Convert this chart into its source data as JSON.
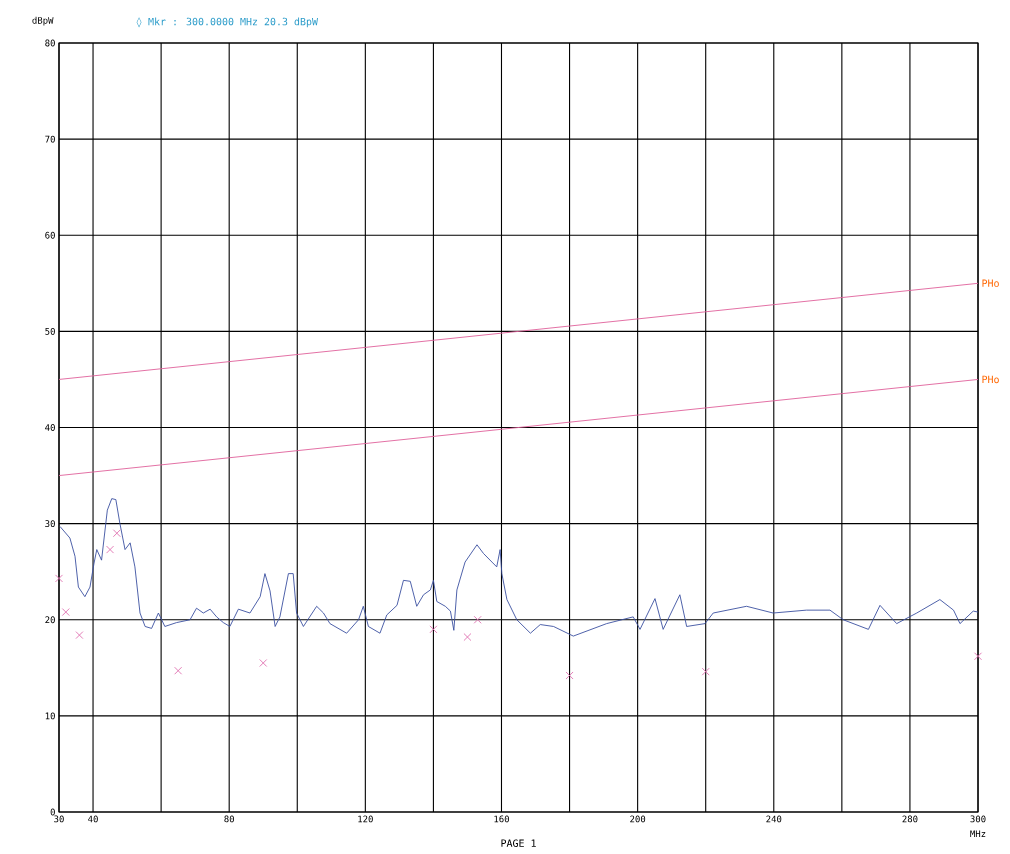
{
  "chart_data": {
    "type": "line",
    "ylabel": "dBpW",
    "xlabel": "MHz",
    "annotations": [
      "◊ Mkr : 300.0000 MHz 20.3 dBpW",
      "PAGE 1"
    ],
    "xlim": [
      30,
      300
    ],
    "ylim": [
      0,
      80
    ],
    "xticks": [
      30,
      40,
      {
        "value": 60,
        "label": null
      },
      80,
      {
        "value": 100,
        "label": null
      },
      120,
      {
        "value": 140,
        "label": null
      },
      160,
      {
        "value": 180,
        "label": null
      },
      200,
      {
        "value": 220,
        "label": null
      },
      240,
      {
        "value": 260,
        "label": null
      },
      280,
      300
    ],
    "yticks": [
      0,
      10,
      20,
      30,
      40,
      50,
      60,
      70,
      80
    ],
    "grid": true,
    "legend": false,
    "line_style": "solid",
    "series": [
      {
        "name": "PHo",
        "color": "#e0609a",
        "x": [
          30,
          300
        ],
        "values": [
          45,
          55
        ],
        "marker": "none"
      },
      {
        "name": "PHo",
        "color": "#e0609a",
        "x": [
          30,
          300
        ],
        "values": [
          35,
          45
        ],
        "marker": "none"
      },
      {
        "color": "#3a4fa0",
        "marker": "none",
        "x": [
          30.3,
          33.2,
          34.7,
          35.7,
          37.6,
          39.1,
          40.3,
          41.1,
          42.5,
          44.2,
          45.5,
          46.7,
          47.9,
          49.4,
          50.9,
          52.3,
          53.8,
          55.3,
          57.2,
          59.2,
          61.1,
          64.5,
          68.5,
          70.4,
          72.4,
          74.4,
          76.3,
          78.3,
          80.2,
          82.7,
          86.1,
          89.1,
          90.5,
          92.0,
          93.5,
          94.9,
          97.4,
          98.8,
          99.8,
          101.8,
          105.7,
          107.7,
          109.6,
          114.5,
          118.0,
          119.4,
          120.9,
          124.3,
          126.3,
          129.3,
          131.2,
          133.2,
          135.1,
          137.1,
          139.1,
          140.0,
          141.0,
          143.5,
          145.0,
          146.0,
          146.9,
          149.3,
          152.8,
          154.7,
          157.2,
          158.6,
          159.6,
          160.1,
          161.6,
          164.5,
          168.5,
          171.4,
          175.3,
          181.1,
          190.9,
          198.7,
          200.7,
          205.1,
          207.5,
          212.4,
          214.4,
          219.8,
          222.2,
          232.0,
          239.8,
          249.6,
          256.5,
          260.4,
          267.8,
          271.2,
          276.1,
          282.0,
          288.8,
          292.8,
          294.7,
          298.6,
          300
        ],
        "values": [
          29.7,
          28.5,
          26.6,
          23.4,
          22.4,
          23.4,
          25.9,
          27.3,
          26.2,
          31.4,
          32.6,
          32.5,
          30.0,
          27.3,
          28.0,
          25.5,
          20.7,
          19.3,
          19.1,
          20.7,
          19.3,
          19.7,
          20.0,
          21.2,
          20.7,
          21.1,
          20.3,
          19.7,
          19.3,
          21.1,
          20.7,
          22.4,
          24.8,
          23.0,
          19.3,
          20.3,
          24.8,
          24.8,
          20.7,
          19.3,
          21.4,
          20.7,
          19.6,
          18.6,
          20.0,
          21.4,
          19.3,
          18.6,
          20.5,
          21.5,
          24.1,
          24.0,
          21.4,
          22.6,
          23.1,
          24.1,
          21.9,
          21.4,
          20.9,
          18.9,
          23.1,
          26.0,
          27.8,
          26.9,
          26.0,
          25.5,
          27.3,
          24.8,
          22.1,
          20.0,
          18.6,
          19.5,
          19.3,
          18.3,
          19.6,
          20.3,
          19.0,
          22.2,
          19.0,
          22.6,
          19.3,
          19.6,
          20.7,
          21.4,
          20.7,
          21.0,
          21.0,
          20.0,
          19.0,
          21.5,
          19.6,
          20.7,
          22.1,
          21.0,
          19.6,
          20.9,
          20.8
        ]
      },
      {
        "type": "scatter",
        "color": "#e070b0",
        "marker": "cross",
        "x": [
          30,
          32,
          36,
          45,
          47,
          65,
          90,
          140,
          150,
          153,
          180,
          220,
          300
        ],
        "values": [
          24.3,
          20.8,
          18.4,
          27.3,
          29.0,
          14.7,
          15.5,
          19.0,
          18.2,
          20.0,
          14.2,
          14.6,
          16.2
        ]
      }
    ]
  }
}
